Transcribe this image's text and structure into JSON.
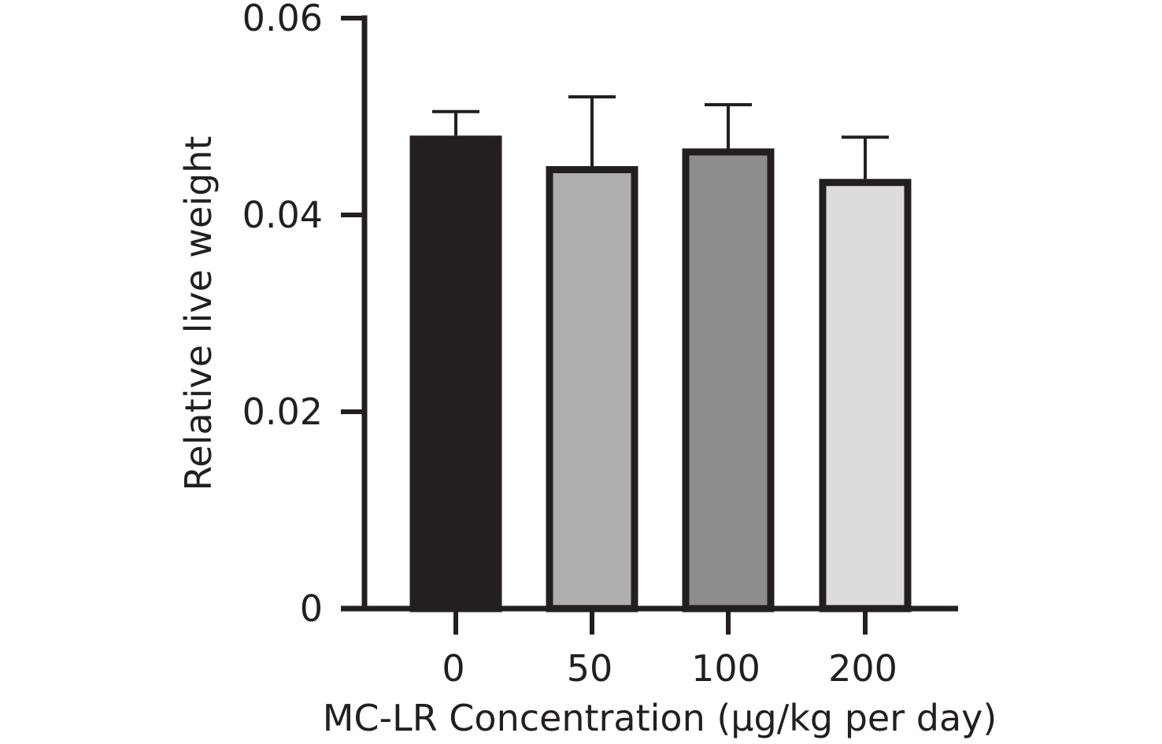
{
  "chart_data": {
    "type": "bar",
    "categories": [
      "0",
      "50",
      "100",
      "200"
    ],
    "values": [
      0.0477,
      0.0446,
      0.0464,
      0.0433
    ],
    "error_upper": [
      0.0505,
      0.052,
      0.0512,
      0.0479
    ],
    "bar_colors": [
      "#231f20",
      "#afaeae",
      "#8e8d8d",
      "#dcdcdc"
    ],
    "outline_color": "#231f20",
    "xlabel": "MC-LR Concentration (µg/kg per day)",
    "ylabel": "Relative live weight",
    "ylim": [
      0,
      0.06
    ],
    "yticks": [
      0,
      0.02,
      0.04,
      0.06
    ],
    "ytick_labels": [
      "0",
      "0.02",
      "0.04",
      "0.06"
    ],
    "grid": false,
    "legend": "none"
  }
}
